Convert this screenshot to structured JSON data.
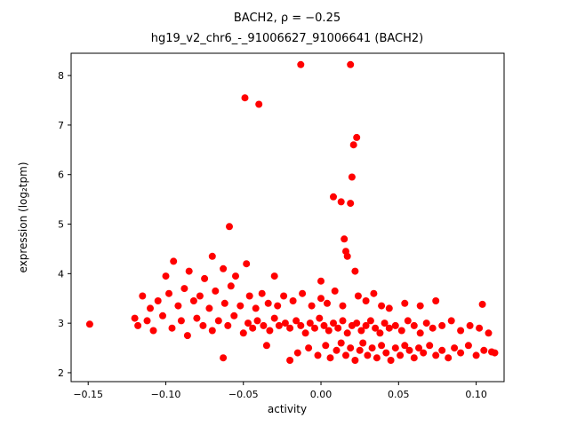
{
  "figure": {
    "background_color": "#ffffff",
    "axes_edge_color": "#000000"
  },
  "chart_data": {
    "type": "scatter",
    "title": "BACH2, ρ = −0.25",
    "subtitle": "hg19_v2_chr6_-_91006627_91006641 (BACH2)",
    "xlabel": "activity",
    "ylabel": "expression (log₂tpm)",
    "xlim": [
      -0.161,
      0.118
    ],
    "ylim": [
      1.82,
      8.45
    ],
    "grid": false,
    "legend": "none",
    "marker_color": "#ff0000",
    "marker_radius": 4,
    "x_ticks": {
      "values": [
        -0.15,
        -0.1,
        -0.05,
        0.0,
        0.05,
        0.1
      ],
      "labels": [
        "−0.15",
        "−0.10",
        "−0.05",
        "0.00",
        "0.05",
        "0.10"
      ]
    },
    "y_ticks": {
      "values": [
        2,
        3,
        4,
        5,
        6,
        7,
        8
      ],
      "labels": [
        "2",
        "3",
        "4",
        "5",
        "6",
        "7",
        "8"
      ]
    },
    "points": [
      [
        -0.013,
        8.22
      ],
      [
        0.019,
        8.22
      ],
      [
        -0.049,
        7.55
      ],
      [
        -0.04,
        7.42
      ],
      [
        0.023,
        6.75
      ],
      [
        0.021,
        6.6
      ],
      [
        0.02,
        5.95
      ],
      [
        0.008,
        5.55
      ],
      [
        0.013,
        5.45
      ],
      [
        0.019,
        5.42
      ],
      [
        -0.059,
        4.95
      ],
      [
        0.015,
        4.7
      ],
      [
        0.016,
        4.45
      ],
      [
        -0.095,
        4.25
      ],
      [
        -0.085,
        4.05
      ],
      [
        -0.1,
        3.95
      ],
      [
        -0.07,
        4.35
      ],
      [
        -0.063,
        4.1
      ],
      [
        -0.048,
        4.2
      ],
      [
        -0.03,
        3.95
      ],
      [
        0.017,
        4.35
      ],
      [
        0.022,
        4.05
      ],
      [
        -0.075,
        3.9
      ],
      [
        -0.055,
        3.95
      ],
      [
        0.0,
        3.85
      ],
      [
        -0.115,
        3.55
      ],
      [
        -0.11,
        3.3
      ],
      [
        -0.105,
        3.45
      ],
      [
        -0.098,
        3.6
      ],
      [
        -0.092,
        3.35
      ],
      [
        -0.088,
        3.7
      ],
      [
        -0.082,
        3.45
      ],
      [
        -0.078,
        3.55
      ],
      [
        -0.072,
        3.3
      ],
      [
        -0.068,
        3.65
      ],
      [
        -0.062,
        3.4
      ],
      [
        -0.058,
        3.75
      ],
      [
        -0.052,
        3.35
      ],
      [
        -0.046,
        3.55
      ],
      [
        -0.042,
        3.3
      ],
      [
        -0.038,
        3.6
      ],
      [
        -0.034,
        3.4
      ],
      [
        -0.028,
        3.35
      ],
      [
        -0.024,
        3.55
      ],
      [
        -0.018,
        3.45
      ],
      [
        -0.012,
        3.6
      ],
      [
        -0.006,
        3.35
      ],
      [
        0.0,
        3.5
      ],
      [
        0.004,
        3.4
      ],
      [
        0.009,
        3.65
      ],
      [
        0.014,
        3.35
      ],
      [
        0.024,
        3.55
      ],
      [
        0.029,
        3.45
      ],
      [
        0.034,
        3.6
      ],
      [
        0.039,
        3.35
      ],
      [
        0.044,
        3.3
      ],
      [
        0.054,
        3.4
      ],
      [
        0.064,
        3.35
      ],
      [
        0.074,
        3.45
      ],
      [
        0.104,
        3.38
      ],
      [
        -0.149,
        2.98
      ],
      [
        -0.12,
        3.1
      ],
      [
        -0.118,
        2.95
      ],
      [
        -0.112,
        3.05
      ],
      [
        -0.108,
        2.85
      ],
      [
        -0.102,
        3.15
      ],
      [
        -0.096,
        2.9
      ],
      [
        -0.09,
        3.05
      ],
      [
        -0.086,
        2.75
      ],
      [
        -0.08,
        3.1
      ],
      [
        -0.076,
        2.95
      ],
      [
        -0.07,
        2.85
      ],
      [
        -0.066,
        3.05
      ],
      [
        -0.06,
        2.95
      ],
      [
        -0.056,
        3.15
      ],
      [
        -0.05,
        2.8
      ],
      [
        -0.047,
        3.0
      ],
      [
        -0.044,
        2.9
      ],
      [
        -0.041,
        3.05
      ],
      [
        -0.037,
        2.95
      ],
      [
        -0.033,
        2.85
      ],
      [
        -0.03,
        3.1
      ],
      [
        -0.027,
        2.95
      ],
      [
        -0.023,
        3.0
      ],
      [
        -0.02,
        2.9
      ],
      [
        -0.016,
        3.05
      ],
      [
        -0.013,
        2.95
      ],
      [
        -0.01,
        2.8
      ],
      [
        -0.007,
        3.0
      ],
      [
        -0.004,
        2.9
      ],
      [
        -0.001,
        3.1
      ],
      [
        0.002,
        2.95
      ],
      [
        0.005,
        2.85
      ],
      [
        0.008,
        3.0
      ],
      [
        0.011,
        2.9
      ],
      [
        0.014,
        3.05
      ],
      [
        0.017,
        2.8
      ],
      [
        0.02,
        2.95
      ],
      [
        0.023,
        3.0
      ],
      [
        0.026,
        2.85
      ],
      [
        0.029,
        2.95
      ],
      [
        0.032,
        3.05
      ],
      [
        0.035,
        2.9
      ],
      [
        0.038,
        2.8
      ],
      [
        0.041,
        3.0
      ],
      [
        0.044,
        2.9
      ],
      [
        0.048,
        2.95
      ],
      [
        0.052,
        2.85
      ],
      [
        0.056,
        3.05
      ],
      [
        0.06,
        2.95
      ],
      [
        0.064,
        2.8
      ],
      [
        0.068,
        3.0
      ],
      [
        0.072,
        2.9
      ],
      [
        0.078,
        2.95
      ],
      [
        0.084,
        3.05
      ],
      [
        0.09,
        2.85
      ],
      [
        0.096,
        2.95
      ],
      [
        0.102,
        2.9
      ],
      [
        0.108,
        2.8
      ],
      [
        -0.063,
        2.3
      ],
      [
        -0.035,
        2.55
      ],
      [
        -0.02,
        2.25
      ],
      [
        -0.015,
        2.4
      ],
      [
        -0.008,
        2.5
      ],
      [
        -0.002,
        2.35
      ],
      [
        0.003,
        2.55
      ],
      [
        0.006,
        2.3
      ],
      [
        0.01,
        2.45
      ],
      [
        0.013,
        2.6
      ],
      [
        0.016,
        2.35
      ],
      [
        0.019,
        2.5
      ],
      [
        0.022,
        2.25
      ],
      [
        0.025,
        2.45
      ],
      [
        0.027,
        2.6
      ],
      [
        0.03,
        2.35
      ],
      [
        0.033,
        2.5
      ],
      [
        0.036,
        2.3
      ],
      [
        0.039,
        2.55
      ],
      [
        0.042,
        2.4
      ],
      [
        0.045,
        2.25
      ],
      [
        0.048,
        2.5
      ],
      [
        0.051,
        2.35
      ],
      [
        0.054,
        2.55
      ],
      [
        0.057,
        2.45
      ],
      [
        0.06,
        2.3
      ],
      [
        0.063,
        2.5
      ],
      [
        0.066,
        2.4
      ],
      [
        0.07,
        2.55
      ],
      [
        0.074,
        2.35
      ],
      [
        0.078,
        2.45
      ],
      [
        0.082,
        2.3
      ],
      [
        0.086,
        2.5
      ],
      [
        0.09,
        2.4
      ],
      [
        0.095,
        2.55
      ],
      [
        0.1,
        2.35
      ],
      [
        0.105,
        2.45
      ],
      [
        0.11,
        2.42
      ],
      [
        0.112,
        2.4
      ]
    ]
  }
}
